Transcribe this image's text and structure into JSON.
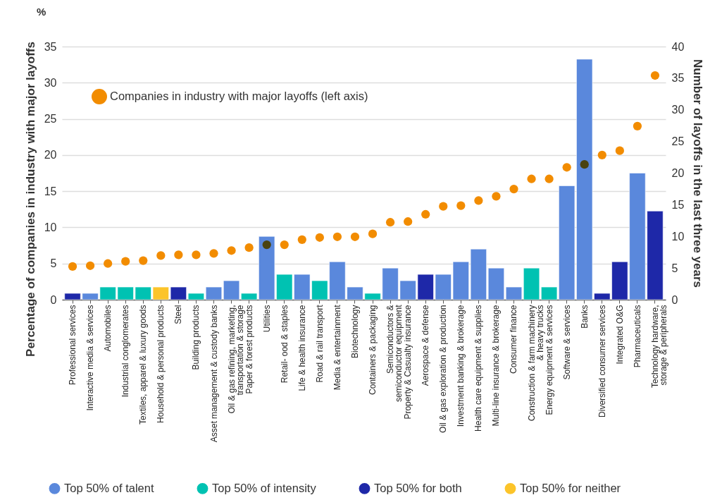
{
  "chart_data": {
    "type": "bar",
    "stacked": true,
    "ylabel": "Percentage of companies in industry with major layoffs",
    "y2label": "Number of layoffs in the last three years",
    "annotations": [
      "%"
    ],
    "categories": [
      "Professional services",
      "Interactive media & services",
      "Automobiles",
      "Industrial conglomerates",
      "Textiles, apparel & luxury goods",
      "Household & personal products",
      "Steel",
      "Building products",
      "Asset management & custody banks",
      "Oil & gas refining, marketing,\ntransportation & storage",
      "Paper & forest products",
      "Utilities",
      "Retail- ood & staples",
      "Life & health insurance",
      "Road & rail transport",
      "Media & entertainment",
      "Biotechnology",
      "Containers & packaging",
      "Semiconductors &\nsemiconductor equipment",
      "Property & Casualty insurance",
      "Aerospace & defense",
      "Oil & gas exploration & production",
      "Investment banking & brokerage",
      "Health care equipment & supplies",
      "Multi-line insurance & brokerage",
      "Consumer finance",
      "Construction & farm machinery\n& heavy trucks",
      "Energy equipment & services",
      "Software & services",
      "Banks",
      "Diversified consumer services",
      "Integrated O&G",
      "Pharmaceuticals",
      "Technology hardware,\nstorage & peripherals"
    ],
    "series": [
      {
        "name": "Top 50% of talent",
        "axis": "y2",
        "color": "#5a88dc",
        "values": [
          null,
          1,
          null,
          null,
          null,
          null,
          null,
          null,
          2,
          3,
          null,
          10,
          null,
          4,
          null,
          6,
          2,
          null,
          5,
          3,
          null,
          4,
          6,
          8,
          5,
          2,
          null,
          null,
          18,
          38,
          null,
          null,
          20,
          null
        ]
      },
      {
        "name": "Top 50% of intensity",
        "axis": "y2",
        "color": "#00c2b2",
        "values": [
          null,
          null,
          2,
          2,
          2,
          null,
          null,
          1,
          null,
          null,
          1,
          null,
          4,
          null,
          3,
          null,
          null,
          1,
          null,
          null,
          null,
          null,
          null,
          null,
          null,
          null,
          5,
          2,
          null,
          null,
          null,
          null,
          null,
          null
        ]
      },
      {
        "name": "Top 50% for both",
        "axis": "y2",
        "color": "#1e28a8",
        "values": [
          1,
          null,
          null,
          null,
          null,
          null,
          2,
          null,
          null,
          null,
          null,
          null,
          null,
          null,
          null,
          null,
          null,
          null,
          null,
          null,
          4,
          null,
          null,
          null,
          null,
          null,
          null,
          null,
          null,
          null,
          1,
          6,
          null,
          14
        ]
      },
      {
        "name": "Top 50% for neither",
        "axis": "y2",
        "color": "#fcc42a",
        "values": [
          null,
          null,
          null,
          null,
          null,
          2,
          null,
          null,
          null,
          null,
          null,
          null,
          null,
          null,
          null,
          null,
          null,
          null,
          null,
          null,
          null,
          null,
          null,
          null,
          null,
          null,
          null,
          null,
          null,
          null,
          null,
          null,
          null,
          null
        ]
      },
      {
        "name": "Companies in industry with major layoffs (left axis)",
        "type": "scatter",
        "color": "#f28c00",
        "colors": [
          "#f28c00",
          "#f28c00",
          "#f28c00",
          "#f28c00",
          "#f28c00",
          "#f28c00",
          "#f28c00",
          "#f28c00",
          "#f28c00",
          "#f28c00",
          "#f28c00",
          "#4a4310",
          "#f28c00",
          "#f28c00",
          "#f28c00",
          "#f28c00",
          "#f28c00",
          "#f28c00",
          "#f28c00",
          "#f28c00",
          "#f28c00",
          "#f28c00",
          "#f28c00",
          "#f28c00",
          "#f28c00",
          "#f28c00",
          "#f28c00",
          "#f28c00",
          "#f28c00",
          "#4a4310",
          "#f28c00",
          "#f28c00",
          "#f28c00",
          "#f28c00"
        ],
        "values": [
          4.6,
          4.7,
          5.0,
          5.3,
          5.4,
          6.1,
          6.2,
          6.2,
          6.4,
          6.8,
          7.2,
          7.6,
          7.6,
          8.3,
          8.6,
          8.7,
          8.7,
          9.1,
          10.7,
          10.8,
          11.8,
          12.9,
          13.0,
          13.7,
          14.3,
          15.3,
          16.7,
          16.7,
          18.3,
          18.7,
          20.0,
          20.6,
          24.0,
          31.0
        ]
      }
    ],
    "ylim": [
      0,
      35
    ],
    "yticks": [
      0,
      5,
      10,
      15,
      20,
      25,
      30,
      35
    ],
    "y2lim": [
      0,
      40
    ],
    "y2ticks": [
      0,
      5,
      10,
      15,
      20,
      25,
      30,
      35,
      40
    ],
    "grid": "y",
    "legend": "bottom",
    "marker": "circle"
  }
}
